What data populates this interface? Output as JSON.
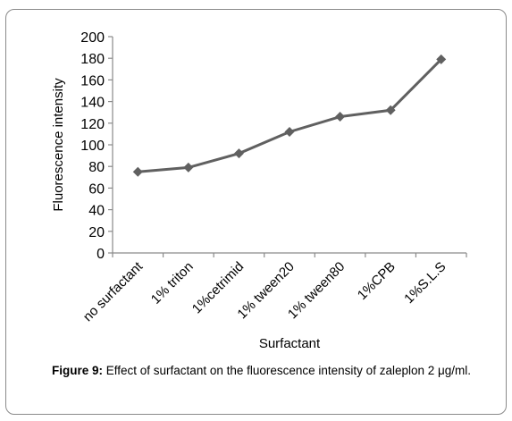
{
  "chart_data": {
    "type": "line",
    "categories": [
      "no surfactant",
      "1% triton",
      "1%cetrimid",
      "1% tween20",
      "1% tween80",
      "1%CPB",
      "1%S.L.S"
    ],
    "series": [
      {
        "values": [
          75,
          79,
          92,
          112,
          126,
          132,
          179
        ]
      }
    ],
    "xlabel": "Surfactant",
    "ylabel": "Fluorescence intensity",
    "ylim": [
      0,
      200
    ],
    "yticks": [
      0,
      20,
      40,
      60,
      80,
      100,
      120,
      140,
      160,
      180,
      200
    ],
    "grid": false,
    "marker": "diamond",
    "line_color": "#606060",
    "axis_color": "#8a8a8a"
  },
  "caption": {
    "label": "Figure 9:",
    "text": " Effect of surfactant on the fluorescence intensity of zaleplon 2 μg/ml."
  }
}
